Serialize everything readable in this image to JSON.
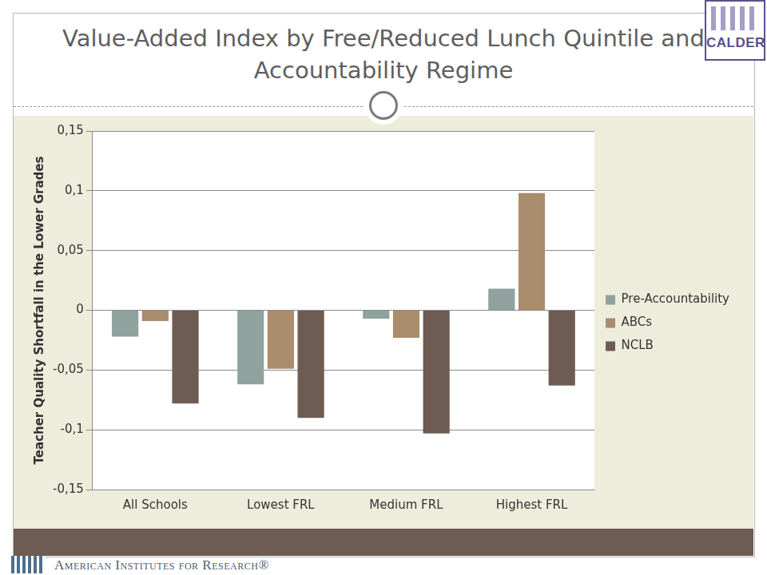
{
  "logo_text": "CALDER",
  "footer_text": "American Institutes for Research®",
  "chart_data": {
    "type": "bar",
    "title": "Value-Added Index by Free/Reduced Lunch Quintile and Accountability Regime",
    "y_label": "Teacher Quality Shortfall in the Lower Grades",
    "categories": [
      "All Schools",
      "Lowest FRL",
      "Medium FRL",
      "Highest FRL"
    ],
    "series": [
      {
        "name": "Pre-Accountability",
        "color": "#8fa29e",
        "values": [
          -0.022,
          -0.062,
          -0.007,
          0.018
        ]
      },
      {
        "name": "ABCs",
        "color": "#a98d6c",
        "values": [
          -0.009,
          -0.049,
          -0.023,
          0.098
        ]
      },
      {
        "name": "NCLB",
        "color": "#6e5b52",
        "values": [
          -0.078,
          -0.09,
          -0.103,
          -0.063
        ]
      }
    ],
    "ylim": [
      -0.15,
      0.15
    ],
    "yticks": [
      {
        "value": -0.15,
        "label": "-0,15"
      },
      {
        "value": -0.1,
        "label": "-0,1"
      },
      {
        "value": -0.05,
        "label": "-0,05"
      },
      0,
      {
        "value": 0.05,
        "label": "0,05"
      },
      {
        "value": 0.1,
        "label": "0,1"
      },
      {
        "value": 0.15,
        "label": "0,15"
      }
    ],
    "grid": true,
    "legend": "right"
  }
}
